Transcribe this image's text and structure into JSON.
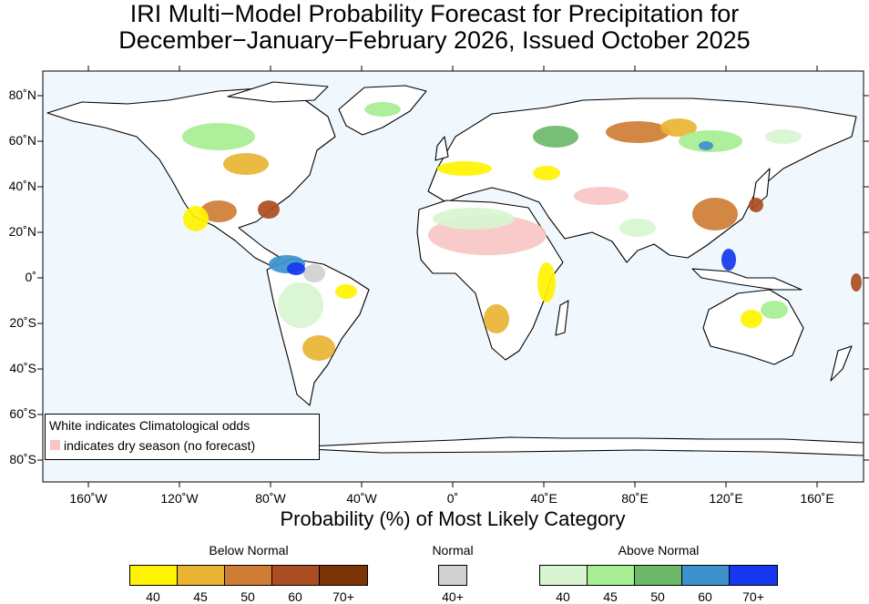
{
  "title": {
    "line1": "IRI Multi−Model Probability Forecast for Precipitation for",
    "line2": "December−January−February 2026, Issued October 2025"
  },
  "axes": {
    "x_ticks": [
      "160˚W",
      "120˚W",
      "80˚W",
      "40˚W",
      "0˚",
      "40˚E",
      "80˚E",
      "120˚E",
      "160˚E"
    ],
    "y_ticks": [
      "80˚N",
      "60˚N",
      "40˚N",
      "20˚N",
      "0˚",
      "20˚S",
      "40˚S",
      "60˚S",
      "80˚S"
    ],
    "xlabel": "Probability (%) of Most Likely Category"
  },
  "note": {
    "line1": "White indicates Climatological odds",
    "line2": "indicates dry season (no forecast)",
    "dry_color": "#f9c5c5"
  },
  "legend": {
    "below": {
      "label": "Below Normal",
      "bins": [
        {
          "label": "40",
          "color": "#fff300"
        },
        {
          "label": "45",
          "color": "#e8b432"
        },
        {
          "label": "50",
          "color": "#cf7d34"
        },
        {
          "label": "60",
          "color": "#ab4d22"
        },
        {
          "label": "70+",
          "color": "#7a3406"
        }
      ]
    },
    "normal": {
      "label": "Normal",
      "bins": [
        {
          "label": "40+",
          "color": "#d0d0d0"
        }
      ]
    },
    "above": {
      "label": "Above Normal",
      "bins": [
        {
          "label": "40",
          "color": "#d7f5d1"
        },
        {
          "label": "45",
          "color": "#a7ee93"
        },
        {
          "label": "50",
          "color": "#6db96a"
        },
        {
          "label": "60",
          "color": "#3d91ce"
        },
        {
          "label": "70+",
          "color": "#1437ef"
        }
      ]
    }
  },
  "colors": {
    "ocean": "#f0f8fd",
    "land": "#ffffff",
    "coast": "#000000",
    "border": "#999999"
  }
}
